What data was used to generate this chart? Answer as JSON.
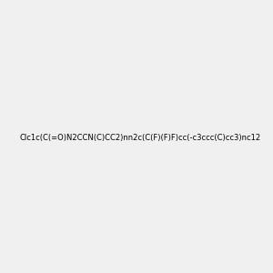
{
  "smiles": "Clc1c(C(=O)N2CCN(C)CC2)nn2c(C(F)(F)F)cc(-c3ccc(C)cc3)nc12",
  "img_size": [
    300,
    300
  ],
  "background_color": "#f0f0f0",
  "title": ""
}
